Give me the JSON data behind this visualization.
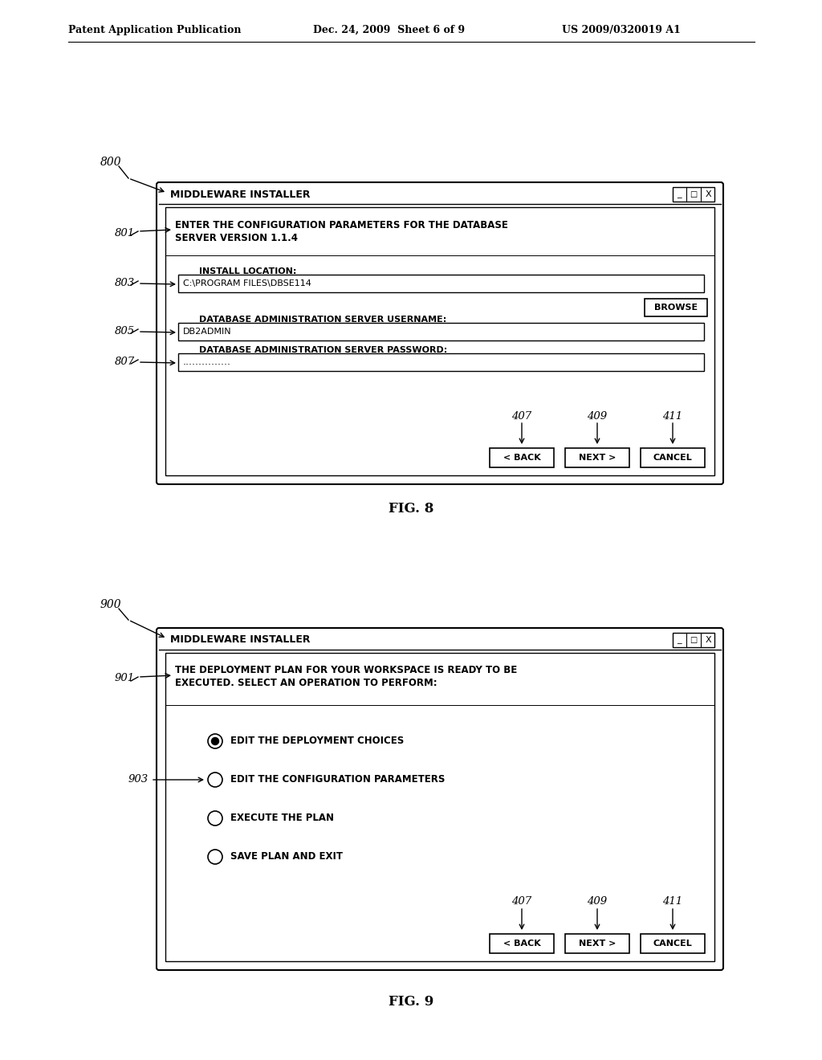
{
  "bg_color": "#ffffff",
  "header_left": "Patent Application Publication",
  "header_mid": "Dec. 24, 2009  Sheet 6 of 9",
  "header_right": "US 2009/0320019 A1",
  "fig8": {
    "label": "800",
    "title_bar": "MIDDLEWARE INSTALLER",
    "region801_text1": "ENTER THE CONFIGURATION PARAMETERS FOR THE DATABASE",
    "region801_text2": "SERVER VERSION 1.1.4",
    "install_label": "INSTALL LOCATION:",
    "install_value": "C:\\PROGRAM FILES\\DBSE114",
    "browse_btn": "BROWSE",
    "username_label": "DATABASE ADMINISTRATION SERVER USERNAME:",
    "username_value": "DB2ADMIN",
    "password_label": "DATABASE ADMINISTRATION SERVER PASSWORD:",
    "password_value": "...............",
    "btn_back": "< BACK",
    "btn_next": "NEXT >",
    "btn_cancel": "CANCEL",
    "ref_407": "407",
    "ref_409": "409",
    "ref_411": "411",
    "fig_label": "FIG. 8"
  },
  "fig9": {
    "label": "900",
    "title_bar": "MIDDLEWARE INSTALLER",
    "region901_text1": "THE DEPLOYMENT PLAN FOR YOUR WORKSPACE IS READY TO BE",
    "region901_text2": "EXECUTED. SELECT AN OPERATION TO PERFORM:",
    "radio_options": [
      {
        "text": "EDIT THE DEPLOYMENT CHOICES",
        "selected": true
      },
      {
        "text": "EDIT THE CONFIGURATION PARAMETERS",
        "selected": false
      },
      {
        "text": "EXECUTE THE PLAN",
        "selected": false
      },
      {
        "text": "SAVE PLAN AND EXIT",
        "selected": false
      }
    ],
    "btn_back": "< BACK",
    "btn_next": "NEXT >",
    "btn_cancel": "CANCEL",
    "ref_407": "407",
    "ref_409": "409",
    "ref_411": "411",
    "fig_label": "FIG. 9"
  }
}
